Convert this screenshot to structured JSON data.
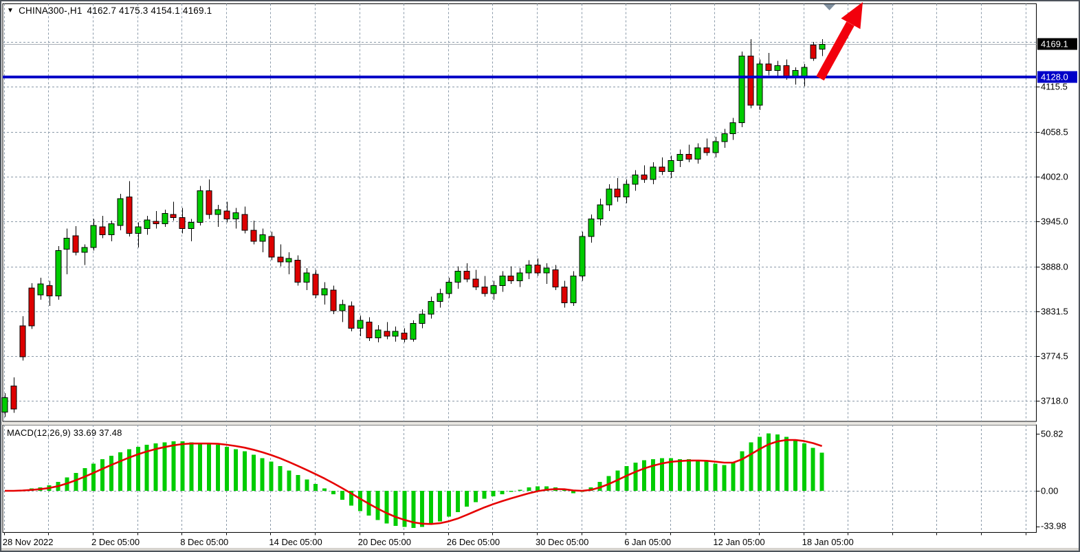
{
  "window": {
    "title": {
      "dropdown_icon": "▼",
      "symbol_period": "CHINA300-,H1",
      "ohlc_string": "4162.7 4175.3 4154.1 4169.1"
    },
    "macd_label": "MACD(12,26,9) 33.69 37.48"
  },
  "colors": {
    "bull": "#00cc00",
    "bear": "#dd0000",
    "wick": "#000000",
    "grid": "#8a99a8",
    "panel_border": "#000000",
    "blue_level_line": "#0000c8",
    "last_price_line_gray": "#a6acb3",
    "badge_black_bg": "#000000",
    "badge_blue_bg": "#0000c8",
    "macd_hist": "#00cc00",
    "macd_signal": "#e60000",
    "arrow_red": "#f2000c",
    "shift_marker_gray": "#8090a0",
    "text": "#000000"
  },
  "chart_data": {
    "type": "candlestick",
    "symbol": "CHINA300-",
    "period": "H1",
    "current_bar": {
      "open": 4162.7,
      "high": 4175.3,
      "low": 4154.1,
      "close": 4169.1
    },
    "price_axis_ticks": [
      4115.5,
      4058.5,
      4002.0,
      3945.0,
      3888.0,
      3831.5,
      3774.5,
      3718.0
    ],
    "unlabeled_grid_price": 4172.0,
    "time_axis_labels": [
      "28 Nov 2022",
      "2 Dec 05:00",
      "8 Dec 05:00",
      "14 Dec 05:00",
      "20 Dec 05:00",
      "26 Dec 05:00",
      "30 Dec 05:00",
      "6 Jan 05:00",
      "12 Jan 05:00",
      "18 Jan 05:00"
    ],
    "levels": {
      "blue_support_line": 4128.0,
      "last_price_gray_line": 4169.1
    },
    "badges": [
      {
        "text": "4169.1",
        "price": 4169.1,
        "bg": "black"
      },
      {
        "text": "4128.0",
        "price": 4128.0,
        "bg": "blue"
      }
    ],
    "annotations": {
      "trend_arrow": {
        "type": "up-arrow",
        "from_price": 4128.0,
        "note": "thick red arrow pointing up-right past top edge"
      },
      "chart_shift_marker": {
        "type": "gray-down-triangle",
        "position": "top, x≈1204"
      }
    },
    "candles": [
      [
        3704,
        3728,
        3698,
        3722
      ],
      [
        3737,
        3748,
        3703,
        3708
      ],
      [
        3813,
        3825,
        3769,
        3774
      ],
      [
        3861,
        3867,
        3809,
        3813
      ],
      [
        3852,
        3874,
        3846,
        3866
      ],
      [
        3864,
        3870,
        3838,
        3851
      ],
      [
        3851,
        3914,
        3846,
        3908
      ],
      [
        3910,
        3936,
        3878,
        3924
      ],
      [
        3927,
        3939,
        3902,
        3906
      ],
      [
        3906,
        3916,
        3890,
        3912
      ],
      [
        3912,
        3948,
        3908,
        3940
      ],
      [
        3938,
        3952,
        3924,
        3928
      ],
      [
        3928,
        3946,
        3920,
        3942
      ],
      [
        3940,
        3980,
        3934,
        3974
      ],
      [
        3976,
        3996,
        3926,
        3930
      ],
      [
        3930,
        3944,
        3912,
        3938
      ],
      [
        3936,
        3952,
        3928,
        3947
      ],
      [
        3945,
        3958,
        3936,
        3942
      ],
      [
        3942,
        3960,
        3938,
        3955
      ],
      [
        3954,
        3970,
        3946,
        3950
      ],
      [
        3950,
        3962,
        3930,
        3936
      ],
      [
        3936,
        3948,
        3920,
        3944
      ],
      [
        3944,
        3990,
        3940,
        3984
      ],
      [
        3984,
        3998,
        3948,
        3954
      ],
      [
        3954,
        3966,
        3938,
        3960
      ],
      [
        3958,
        3970,
        3944,
        3948
      ],
      [
        3948,
        3962,
        3936,
        3956
      ],
      [
        3954,
        3964,
        3930,
        3934
      ],
      [
        3934,
        3946,
        3916,
        3920
      ],
      [
        3920,
        3936,
        3906,
        3928
      ],
      [
        3926,
        3932,
        3896,
        3900
      ],
      [
        3900,
        3916,
        3888,
        3894
      ],
      [
        3894,
        3906,
        3878,
        3898
      ],
      [
        3896,
        3902,
        3864,
        3868
      ],
      [
        3868,
        3886,
        3858,
        3880
      ],
      [
        3878,
        3884,
        3848,
        3852
      ],
      [
        3852,
        3868,
        3840,
        3860
      ],
      [
        3858,
        3864,
        3828,
        3832
      ],
      [
        3832,
        3846,
        3818,
        3840
      ],
      [
        3838,
        3844,
        3806,
        3810
      ],
      [
        3810,
        3826,
        3800,
        3820
      ],
      [
        3818,
        3824,
        3794,
        3798
      ],
      [
        3798,
        3814,
        3792,
        3808
      ],
      [
        3806,
        3818,
        3796,
        3800
      ],
      [
        3800,
        3812,
        3793,
        3806
      ],
      [
        3804,
        3810,
        3792,
        3796
      ],
      [
        3796,
        3820,
        3793,
        3816
      ],
      [
        3816,
        3834,
        3810,
        3828
      ],
      [
        3828,
        3850,
        3822,
        3844
      ],
      [
        3844,
        3860,
        3836,
        3854
      ],
      [
        3854,
        3874,
        3848,
        3868
      ],
      [
        3868,
        3888,
        3860,
        3882
      ],
      [
        3882,
        3892,
        3868,
        3872
      ],
      [
        3872,
        3884,
        3858,
        3862
      ],
      [
        3862,
        3876,
        3850,
        3854
      ],
      [
        3854,
        3870,
        3846,
        3864
      ],
      [
        3864,
        3882,
        3856,
        3876
      ],
      [
        3876,
        3888,
        3866,
        3870
      ],
      [
        3870,
        3886,
        3862,
        3880
      ],
      [
        3880,
        3896,
        3872,
        3890
      ],
      [
        3890,
        3898,
        3876,
        3880
      ],
      [
        3880,
        3892,
        3866,
        3886
      ],
      [
        3884,
        3890,
        3858,
        3862
      ],
      [
        3862,
        3870,
        3836,
        3842
      ],
      [
        3842,
        3882,
        3838,
        3876
      ],
      [
        3876,
        3932,
        3870,
        3926
      ],
      [
        3926,
        3954,
        3918,
        3948
      ],
      [
        3948,
        3974,
        3940,
        3966
      ],
      [
        3966,
        3992,
        3958,
        3986
      ],
      [
        3986,
        4000,
        3970,
        3976
      ],
      [
        3976,
        3998,
        3968,
        3992
      ],
      [
        3992,
        4010,
        3984,
        4004
      ],
      [
        4004,
        4016,
        3994,
        3998
      ],
      [
        3998,
        4020,
        3992,
        4014
      ],
      [
        4014,
        4026,
        4004,
        4008
      ],
      [
        4008,
        4028,
        4000,
        4022
      ],
      [
        4022,
        4036,
        4014,
        4030
      ],
      [
        4030,
        4042,
        4020,
        4024
      ],
      [
        4024,
        4044,
        4018,
        4038
      ],
      [
        4038,
        4050,
        4028,
        4032
      ],
      [
        4032,
        4052,
        4026,
        4046
      ],
      [
        4046,
        4062,
        4038,
        4056
      ],
      [
        4056,
        4076,
        4048,
        4070
      ],
      [
        4070,
        4160,
        4064,
        4154
      ],
      [
        4154,
        4175.3,
        4088,
        4092
      ],
      [
        4092,
        4150,
        4086,
        4144
      ],
      [
        4144,
        4158,
        4130,
        4136
      ],
      [
        4136,
        4148,
        4126,
        4142
      ],
      [
        4142,
        4150,
        4124,
        4128
      ],
      [
        4128,
        4140,
        4118,
        4136
      ],
      [
        4129,
        4144,
        4115.8,
        4140
      ],
      [
        4168,
        4172,
        4148,
        4151
      ],
      [
        4162.7,
        4175.3,
        4154.1,
        4169.1
      ]
    ],
    "macd": {
      "params": "12,26,9",
      "main_last": 33.69,
      "signal_last": 37.48,
      "axis_ticks": [
        50.82,
        0.0,
        -33.98
      ],
      "histogram": [
        0,
        0,
        1,
        2,
        3,
        5,
        8,
        12,
        16,
        20,
        24,
        28,
        31,
        34,
        37,
        39,
        41,
        42,
        43,
        44,
        44,
        43,
        42,
        42,
        41,
        39,
        37,
        35,
        32,
        29,
        26,
        22,
        18,
        14,
        10,
        6,
        2,
        -3,
        -8,
        -13,
        -18,
        -22,
        -26,
        -29,
        -31,
        -32,
        -33,
        -32,
        -30,
        -27,
        -23,
        -19,
        -14,
        -10,
        -7,
        -5,
        -3,
        -1,
        1,
        3,
        4,
        4,
        3,
        1,
        -2,
        -1,
        3,
        8,
        13,
        18,
        22,
        25,
        27,
        28,
        29,
        29,
        28,
        28,
        27,
        26,
        24,
        23,
        25,
        35,
        43,
        48,
        50.8,
        50,
        48,
        45,
        42,
        38,
        33.69
      ]
    }
  }
}
